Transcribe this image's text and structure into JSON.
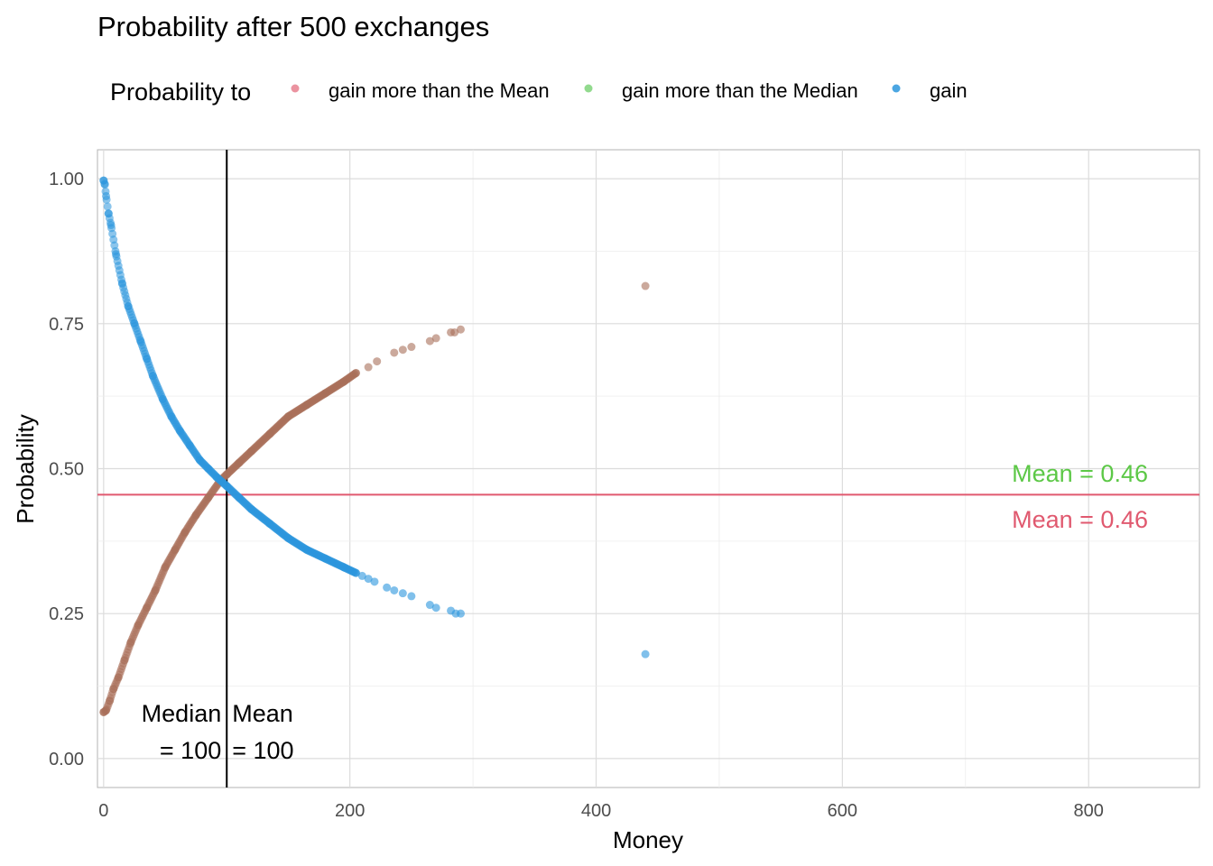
{
  "chart_data": {
    "type": "scatter",
    "title": "Probability after 500 exchanges",
    "xlabel": "Money",
    "ylabel": "Probability",
    "xlim": [
      -5,
      890
    ],
    "ylim": [
      -0.05,
      1.05
    ],
    "x_ticks": [
      0,
      200,
      400,
      600,
      800
    ],
    "y_ticks": [
      0.0,
      0.25,
      0.5,
      0.75,
      1.0
    ],
    "x_tick_labels": [
      "0",
      "200",
      "400",
      "600",
      "800"
    ],
    "y_tick_labels": [
      "0.00",
      "0.25",
      "0.50",
      "0.75",
      "1.00"
    ],
    "grid": true,
    "legend_position": "top",
    "legend": {
      "title": "Probability to",
      "entries": [
        {
          "label": "gain more than the Mean",
          "color": "#e8808f"
        },
        {
          "label": "gain more than the Median",
          "color": "#7fd37a"
        },
        {
          "label": "gain",
          "color": "#2c96dd"
        }
      ]
    },
    "series": [
      {
        "name": "gain more than the Mean",
        "color": "#a9705a",
        "x": [
          0,
          2,
          5,
          8,
          12,
          17,
          22,
          28,
          35,
          42,
          50,
          58,
          66,
          75,
          85,
          95,
          100,
          110,
          120,
          135,
          150,
          165,
          180,
          195,
          205,
          215,
          222,
          236,
          243,
          250,
          265,
          270,
          282,
          285,
          290,
          440
        ],
        "y": [
          0.08,
          0.083,
          0.1,
          0.12,
          0.14,
          0.17,
          0.2,
          0.23,
          0.26,
          0.29,
          0.33,
          0.36,
          0.39,
          0.42,
          0.45,
          0.48,
          0.49,
          0.51,
          0.53,
          0.56,
          0.59,
          0.61,
          0.63,
          0.65,
          0.665,
          0.675,
          0.685,
          0.7,
          0.705,
          0.71,
          0.72,
          0.725,
          0.735,
          0.735,
          0.74,
          0.815
        ]
      },
      {
        "name": "gain",
        "color": "#2c96dd",
        "x": [
          0,
          1,
          2,
          4,
          6,
          10,
          15,
          20,
          25,
          30,
          35,
          40,
          48,
          55,
          62,
          70,
          78,
          85,
          92,
          100,
          110,
          120,
          135,
          150,
          165,
          180,
          195,
          205,
          210,
          215,
          220,
          230,
          236,
          243,
          250,
          265,
          270,
          282,
          286,
          290,
          440
        ],
        "y": [
          0.997,
          0.99,
          0.97,
          0.94,
          0.92,
          0.87,
          0.82,
          0.78,
          0.75,
          0.72,
          0.69,
          0.66,
          0.62,
          0.59,
          0.565,
          0.54,
          0.515,
          0.5,
          0.485,
          0.47,
          0.45,
          0.43,
          0.405,
          0.38,
          0.36,
          0.345,
          0.33,
          0.32,
          0.315,
          0.31,
          0.305,
          0.295,
          0.29,
          0.285,
          0.28,
          0.265,
          0.26,
          0.255,
          0.25,
          0.25,
          0.18
        ]
      }
    ],
    "reference_lines": {
      "vertical": {
        "x": 100,
        "color": "#000000"
      },
      "horizontal": {
        "y": 0.455,
        "color": "#e0596f"
      }
    },
    "annotations": {
      "median_label": "Median\n= 100",
      "mean_money_label": "Mean\n= 100",
      "mean_median_prob": {
        "text": "Mean = 0.46",
        "color": "#5cc846"
      },
      "mean_mean_prob": {
        "text": "Mean = 0.46",
        "color": "#e0596f"
      }
    }
  }
}
